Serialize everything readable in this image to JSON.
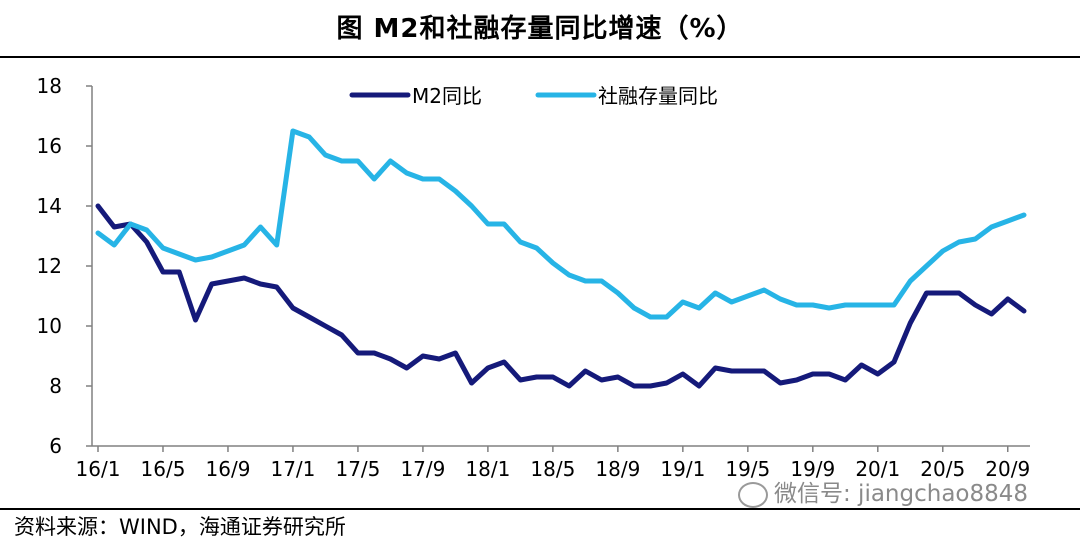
{
  "title": "图  M2和社融存量同比增速（%）",
  "source": "资料来源：WIND，海通证券研究所",
  "watermark": "微信号: jiangchao8848",
  "chart_data": {
    "type": "line",
    "x_tick_labels": [
      "16/1",
      "16/5",
      "16/9",
      "17/1",
      "17/5",
      "17/9",
      "18/1",
      "18/5",
      "18/9",
      "19/1",
      "19/5",
      "19/9",
      "20/1",
      "20/5",
      "20/9"
    ],
    "x": [
      "16/1",
      "16/2",
      "16/3",
      "16/4",
      "16/5",
      "16/6",
      "16/7",
      "16/8",
      "16/9",
      "16/10",
      "16/11",
      "16/12",
      "17/1",
      "17/2",
      "17/3",
      "17/4",
      "17/5",
      "17/6",
      "17/7",
      "17/8",
      "17/9",
      "17/10",
      "17/11",
      "17/12",
      "18/1",
      "18/2",
      "18/3",
      "18/4",
      "18/5",
      "18/6",
      "18/7",
      "18/8",
      "18/9",
      "18/10",
      "18/11",
      "18/12",
      "19/1",
      "19/2",
      "19/3",
      "19/4",
      "19/5",
      "19/6",
      "19/7",
      "19/8",
      "19/9",
      "19/10",
      "19/11",
      "19/12",
      "20/1",
      "20/2",
      "20/3",
      "20/4",
      "20/5",
      "20/6",
      "20/7",
      "20/8",
      "20/9",
      "20/10"
    ],
    "ylim": [
      6,
      18
    ],
    "yticks": [
      6,
      8,
      10,
      12,
      14,
      16,
      18
    ],
    "legend_position": "top-center",
    "series": [
      {
        "name": "M2同比",
        "color": "#151a7a",
        "values": [
          14.0,
          13.3,
          13.4,
          12.8,
          11.8,
          11.8,
          10.2,
          11.4,
          11.5,
          11.6,
          11.4,
          11.3,
          10.6,
          10.3,
          10.0,
          9.7,
          9.1,
          9.1,
          8.9,
          8.6,
          9.0,
          8.9,
          9.1,
          8.1,
          8.6,
          8.8,
          8.2,
          8.3,
          8.3,
          8.0,
          8.5,
          8.2,
          8.3,
          8.0,
          8.0,
          8.1,
          8.4,
          8.0,
          8.6,
          8.5,
          8.5,
          8.5,
          8.1,
          8.2,
          8.4,
          8.4,
          8.2,
          8.7,
          8.4,
          8.8,
          10.1,
          11.1,
          11.1,
          11.1,
          10.7,
          10.4,
          10.9,
          10.5
        ]
      },
      {
        "name": "社融存量同比",
        "color": "#27b4e6",
        "values": [
          13.1,
          12.7,
          13.4,
          13.2,
          12.6,
          12.4,
          12.2,
          12.3,
          12.5,
          12.7,
          13.3,
          12.7,
          16.5,
          16.3,
          15.7,
          15.5,
          15.5,
          14.9,
          15.5,
          15.1,
          14.9,
          14.9,
          14.5,
          14.0,
          13.4,
          13.4,
          12.8,
          12.6,
          12.1,
          11.7,
          11.5,
          11.5,
          11.1,
          10.6,
          10.3,
          10.3,
          10.8,
          10.6,
          11.1,
          10.8,
          11.0,
          11.2,
          10.9,
          10.7,
          10.7,
          10.6,
          10.7,
          10.7,
          10.7,
          10.7,
          11.5,
          12.0,
          12.5,
          12.8,
          12.9,
          13.3,
          13.5,
          13.7
        ]
      }
    ]
  }
}
